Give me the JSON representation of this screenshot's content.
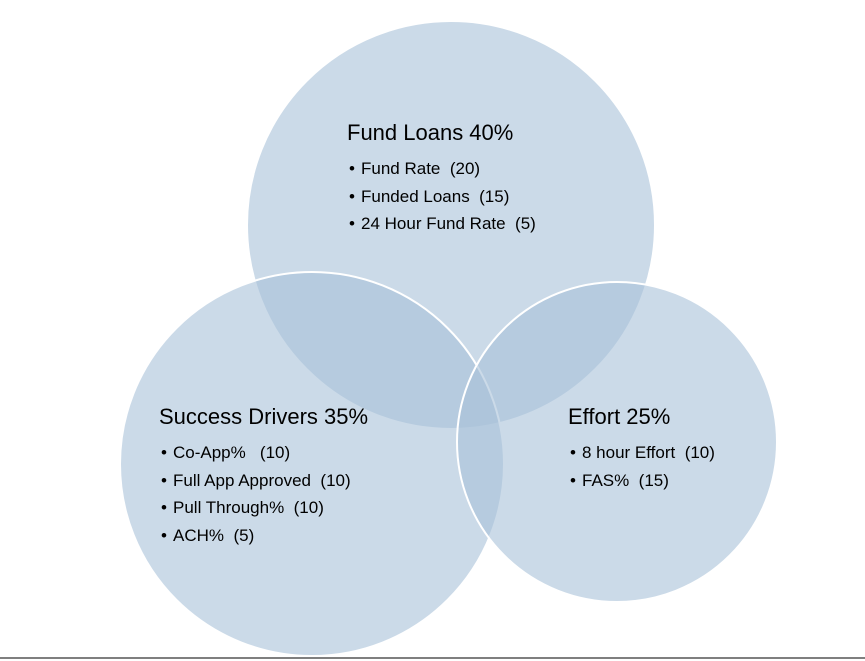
{
  "diagram": {
    "type": "venn",
    "circles": [
      {
        "id": "fund",
        "title": "Fund Loans 40%",
        "items": [
          "Fund Rate  (20)",
          "Funded Loans  (15)",
          "24 Hour Fund Rate  (5)"
        ]
      },
      {
        "id": "success",
        "title": "Success Drivers 35%",
        "items": [
          "Co-App%   (10)",
          "Full App Approved  (10)",
          "Pull Through%  (10)",
          "ACH%  (5)"
        ]
      },
      {
        "id": "effort",
        "title": "Effort 25%",
        "items": [
          "8 hour Effort  (10)",
          "FAS%  (15)"
        ]
      }
    ],
    "bullet": "•",
    "colors": {
      "circle_fill": "#a9c1d9",
      "circle_stroke": "#ffffff",
      "text": "#000000",
      "rule": "#7f7f7f"
    }
  }
}
